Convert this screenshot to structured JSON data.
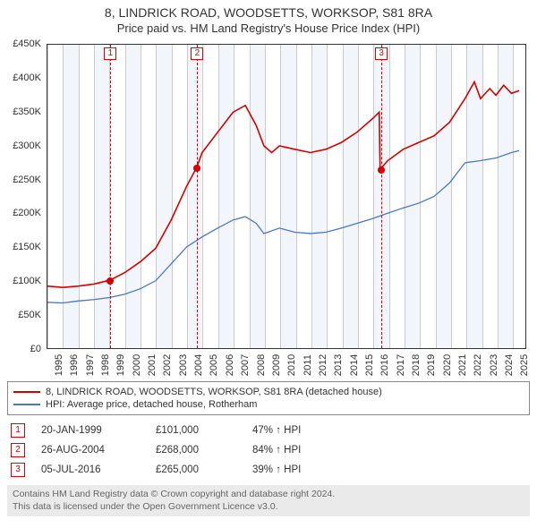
{
  "title": "8, LINDRICK ROAD, WOODSETTS, WORKSOP, S81 8RA",
  "subtitle": "Price paid vs. HM Land Registry's House Price Index (HPI)",
  "chart": {
    "type": "line",
    "background_color": "#ffffff",
    "alt_band_color": "#f2f6fa",
    "grid_color": "#cccccc",
    "axis_color": "#333333",
    "xlim": [
      1995,
      2025.9
    ],
    "ylim": [
      0,
      450000
    ],
    "ytick_step": 50000,
    "y_tick_labels": [
      "£0",
      "£50K",
      "£100K",
      "£150K",
      "£200K",
      "£250K",
      "£300K",
      "£350K",
      "£400K",
      "£450K"
    ],
    "x_ticks": [
      1995,
      1996,
      1997,
      1998,
      1999,
      2000,
      2001,
      2002,
      2003,
      2004,
      2005,
      2006,
      2007,
      2008,
      2009,
      2010,
      2011,
      2012,
      2013,
      2014,
      2015,
      2016,
      2017,
      2018,
      2019,
      2020,
      2021,
      2022,
      2023,
      2024,
      2025
    ],
    "series": [
      {
        "name": "8, LINDRICK ROAD, WOODSETTS, WORKSOP, S81 8RA (detached house)",
        "color": "#d40000",
        "line_width": 1.6,
        "points": [
          [
            1995.0,
            92000
          ],
          [
            1996.0,
            90000
          ],
          [
            1997.0,
            92000
          ],
          [
            1998.0,
            95000
          ],
          [
            1999.06,
            101000
          ],
          [
            2000.0,
            112000
          ],
          [
            2001.0,
            128000
          ],
          [
            2002.0,
            148000
          ],
          [
            2003.0,
            190000
          ],
          [
            2004.0,
            240000
          ],
          [
            2004.65,
            268000
          ],
          [
            2005.0,
            290000
          ],
          [
            2006.0,
            320000
          ],
          [
            2007.0,
            350000
          ],
          [
            2007.8,
            360000
          ],
          [
            2008.5,
            330000
          ],
          [
            2009.0,
            300000
          ],
          [
            2009.5,
            290000
          ],
          [
            2010.0,
            300000
          ],
          [
            2011.0,
            295000
          ],
          [
            2012.0,
            290000
          ],
          [
            2013.0,
            295000
          ],
          [
            2014.0,
            305000
          ],
          [
            2015.0,
            320000
          ],
          [
            2016.0,
            340000
          ],
          [
            2016.45,
            350000
          ],
          [
            2016.51,
            265000
          ],
          [
            2017.0,
            278000
          ],
          [
            2018.0,
            295000
          ],
          [
            2019.0,
            305000
          ],
          [
            2020.0,
            315000
          ],
          [
            2021.0,
            335000
          ],
          [
            2022.0,
            370000
          ],
          [
            2022.6,
            395000
          ],
          [
            2023.0,
            370000
          ],
          [
            2023.6,
            385000
          ],
          [
            2024.0,
            375000
          ],
          [
            2024.5,
            390000
          ],
          [
            2025.0,
            378000
          ],
          [
            2025.5,
            382000
          ]
        ]
      },
      {
        "name": "HPI: Average price, detached house, Rotherham",
        "color": "#4a77c4",
        "line_width": 1.3,
        "points": [
          [
            1995.0,
            68000
          ],
          [
            1996.0,
            67000
          ],
          [
            1997.0,
            70000
          ],
          [
            1998.0,
            72000
          ],
          [
            1999.0,
            75000
          ],
          [
            2000.0,
            80000
          ],
          [
            2001.0,
            88000
          ],
          [
            2002.0,
            100000
          ],
          [
            2003.0,
            125000
          ],
          [
            2004.0,
            150000
          ],
          [
            2005.0,
            165000
          ],
          [
            2006.0,
            178000
          ],
          [
            2007.0,
            190000
          ],
          [
            2007.8,
            195000
          ],
          [
            2008.5,
            185000
          ],
          [
            2009.0,
            170000
          ],
          [
            2010.0,
            178000
          ],
          [
            2011.0,
            172000
          ],
          [
            2012.0,
            170000
          ],
          [
            2013.0,
            172000
          ],
          [
            2014.0,
            178000
          ],
          [
            2015.0,
            185000
          ],
          [
            2016.0,
            192000
          ],
          [
            2017.0,
            200000
          ],
          [
            2018.0,
            208000
          ],
          [
            2019.0,
            215000
          ],
          [
            2020.0,
            225000
          ],
          [
            2021.0,
            245000
          ],
          [
            2022.0,
            275000
          ],
          [
            2023.0,
            278000
          ],
          [
            2024.0,
            282000
          ],
          [
            2025.0,
            290000
          ],
          [
            2025.5,
            293000
          ]
        ]
      }
    ],
    "sale_markers": [
      {
        "n": "1",
        "x": 1999.06,
        "y": 101000,
        "color": "#d40000"
      },
      {
        "n": "2",
        "x": 2004.65,
        "y": 268000,
        "color": "#d40000"
      },
      {
        "n": "3",
        "x": 2016.51,
        "y": 265000,
        "color": "#d40000"
      }
    ]
  },
  "legend": {
    "items": [
      {
        "color": "#d40000",
        "label": "8, LINDRICK ROAD, WOODSETTS, WORKSOP, S81 8RA (detached house)"
      },
      {
        "color": "#4a77c4",
        "label": "HPI: Average price, detached house, Rotherham"
      }
    ]
  },
  "sales": [
    {
      "n": "1",
      "date": "20-JAN-1999",
      "price": "£101,000",
      "pct": "47% ↑ HPI"
    },
    {
      "n": "2",
      "date": "26-AUG-2004",
      "price": "£268,000",
      "pct": "84% ↑ HPI"
    },
    {
      "n": "3",
      "date": "05-JUL-2016",
      "price": "£265,000",
      "pct": "39% ↑ HPI"
    }
  ],
  "footer_line1": "Contains HM Land Registry data © Crown copyright and database right 2024.",
  "footer_line2": "This data is licensed under the Open Government Licence v3.0."
}
